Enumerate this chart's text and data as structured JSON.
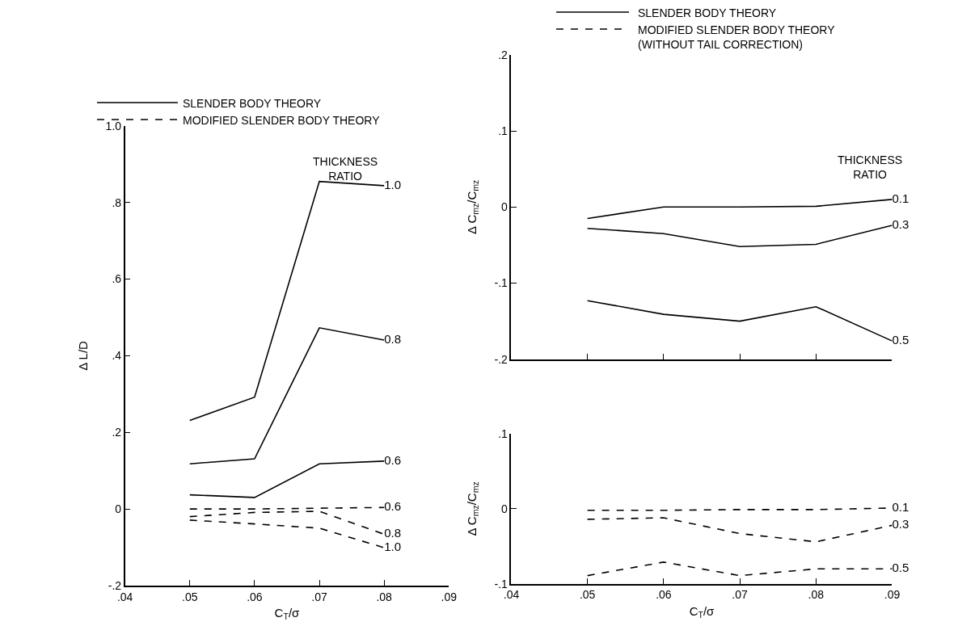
{
  "chart_data": [
    {
      "type": "line",
      "xlabel": "C$_{T}$/σ",
      "ylabel": "Δ L/D",
      "grid": false,
      "marker": "none",
      "x": [
        0.05,
        0.06,
        0.07,
        0.08
      ],
      "xlim": [
        0.04,
        0.09
      ],
      "xticks": [
        {
          "value": 0.04,
          "label": ".04"
        },
        {
          "value": 0.05,
          "label": ".05"
        },
        {
          "value": 0.06,
          "label": ".06"
        },
        {
          "value": 0.07,
          "label": ".07"
        },
        {
          "value": 0.08,
          "label": ".08"
        },
        {
          "value": 0.09,
          "label": ".09"
        }
      ],
      "ylim": [
        -0.2,
        1.0
      ],
      "yticks": [
        {
          "value": -0.2,
          "label": "-.2"
        },
        0,
        {
          "value": 0.2,
          "label": ".2"
        },
        {
          "value": 0.4,
          "label": ".4"
        },
        {
          "value": 0.6,
          "label": ".6"
        },
        {
          "value": 0.8,
          "label": ".8"
        },
        {
          "value": 1.0,
          "label": "1.0"
        }
      ],
      "annotations": [
        "SLENDER BODY THEORY",
        "MODIFIED SLENDER BODY THEORY",
        "THICKNESS\nRATIO"
      ],
      "series": [
        {
          "name": "1.0",
          "color": "#000000",
          "line_style": "solid",
          "values": [
            0.231,
            0.292,
            0.855,
            0.844
          ]
        },
        {
          "name": "0.8",
          "color": "#000000",
          "line_style": "solid",
          "values": [
            0.118,
            0.131,
            0.473,
            0.441
          ]
        },
        {
          "name": "0.6",
          "color": "#000000",
          "line_style": "solid",
          "values": [
            0.037,
            0.03,
            0.118,
            0.125
          ]
        },
        {
          "name": "0.6",
          "color": "#000000",
          "line_style": "dashed",
          "values": [
            0.0,
            0.0,
            0.002,
            0.004
          ]
        },
        {
          "name": "0.8",
          "color": "#000000",
          "line_style": "dashed",
          "values": [
            -0.02,
            -0.009,
            -0.006,
            -0.066
          ]
        },
        {
          "name": "1.0",
          "color": "#000000",
          "line_style": "dashed",
          "values": [
            -0.029,
            -0.039,
            -0.05,
            -0.101
          ]
        }
      ]
    },
    {
      "type": "line",
      "ylabel": "Δ C$_{mz}$/C$_{mz}$",
      "grid": false,
      "marker": "none",
      "tick_labels": "y",
      "x": [
        0.05,
        0.06,
        0.07,
        0.08,
        0.09
      ],
      "xlim": [
        0.04,
        0.09
      ],
      "xticks": [
        {
          "value": 0.05,
          "label": null
        },
        {
          "value": 0.06,
          "label": null
        },
        {
          "value": 0.07,
          "label": null
        },
        {
          "value": 0.08,
          "label": null
        },
        {
          "value": 0.09,
          "label": null
        }
      ],
      "ylim": [
        -0.2,
        0.2
      ],
      "yticks": [
        {
          "value": -0.2,
          "label": "-.2"
        },
        {
          "value": -0.1,
          "label": "-.1"
        },
        0,
        {
          "value": 0.1,
          "label": ".1"
        },
        {
          "value": 0.2,
          "label": ".2"
        }
      ],
      "annotations": [
        "SLENDER BODY THEORY",
        "MODIFIED SLENDER BODY THEORY\n(WITHOUT TAIL CORRECTION)",
        "THICKNESS\nRATIO"
      ],
      "series": [
        {
          "name": "0.1",
          "color": "#000000",
          "line_style": "solid",
          "values": [
            -0.015,
            0.0,
            0.0,
            0.001,
            0.01
          ]
        },
        {
          "name": "0.3",
          "color": "#000000",
          "line_style": "solid",
          "values": [
            -0.028,
            -0.035,
            -0.052,
            -0.049,
            -0.024
          ]
        },
        {
          "name": "0.5",
          "color": "#000000",
          "line_style": "solid",
          "values": [
            -0.123,
            -0.141,
            -0.15,
            -0.131,
            -0.176
          ]
        }
      ]
    },
    {
      "type": "line",
      "xlabel": "C$_{T}$/σ",
      "ylabel": "Δ C$_{mz}$/C$_{mz}$",
      "grid": false,
      "marker": "none",
      "x": [
        0.05,
        0.06,
        0.07,
        0.08,
        0.09
      ],
      "xlim": [
        0.04,
        0.09
      ],
      "xticks": [
        {
          "value": 0.04,
          "label": ".04"
        },
        {
          "value": 0.05,
          "label": ".05"
        },
        {
          "value": 0.06,
          "label": ".06"
        },
        {
          "value": 0.07,
          "label": ".07"
        },
        {
          "value": 0.08,
          "label": ".08"
        },
        {
          "value": 0.09,
          "label": ".09"
        }
      ],
      "ylim": [
        -0.1,
        0.1
      ],
      "yticks": [
        {
          "value": -0.1,
          "label": "-.1"
        },
        0,
        {
          "value": 0.1,
          "label": ".1"
        }
      ],
      "series": [
        {
          "name": "0.1",
          "color": "#000000",
          "line_style": "dashed",
          "values": [
            -0.002,
            -0.002,
            -0.001,
            -0.001,
            0.001
          ]
        },
        {
          "name": "0.3",
          "color": "#000000",
          "line_style": "dashed",
          "values": [
            -0.014,
            -0.012,
            -0.033,
            -0.044,
            -0.022
          ]
        },
        {
          "name": "0.5",
          "color": "#000000",
          "line_style": "dashed",
          "values": [
            -0.089,
            -0.071,
            -0.089,
            -0.08,
            -0.08
          ]
        }
      ]
    }
  ]
}
